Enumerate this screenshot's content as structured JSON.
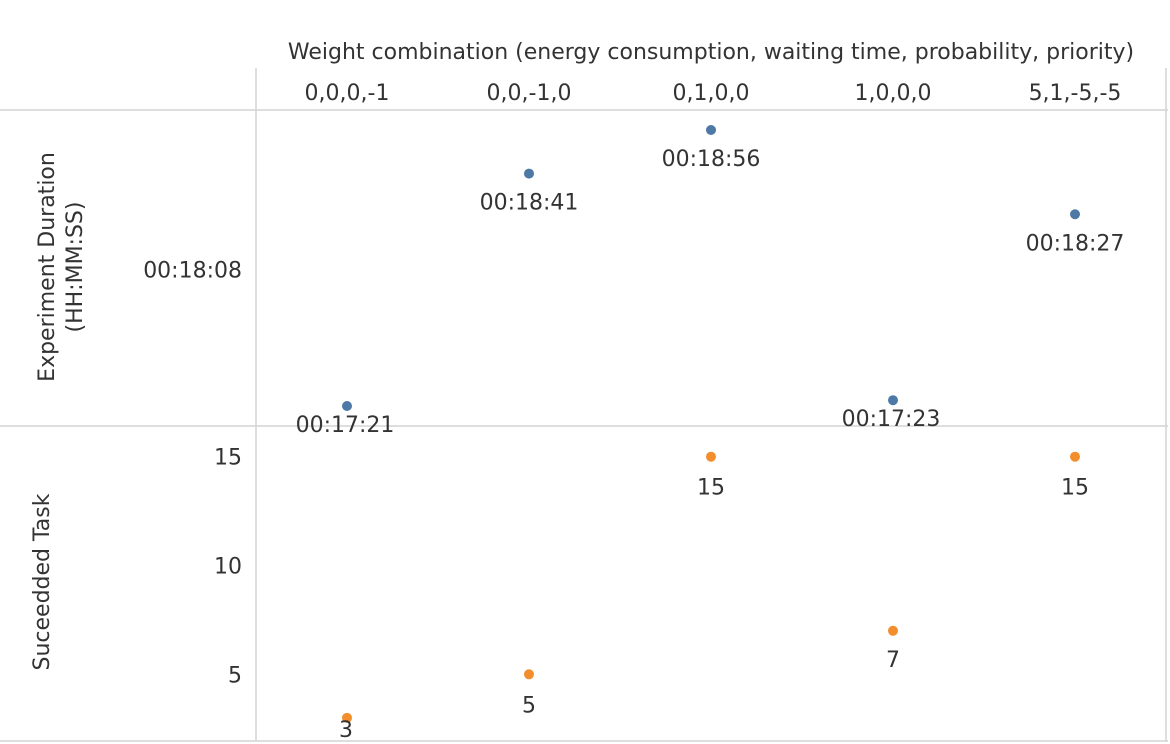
{
  "chart_data": {
    "type": "scatter",
    "title": "Weight combination (energy consumption, waiting time, probability, priority)",
    "categories": [
      "0,0,0,-1",
      "0,0,-1,0",
      "0,1,0,0",
      "1,0,0,0",
      "5,1,-5,-5"
    ],
    "panels": [
      {
        "name": "Experiment Duration",
        "ylabel_lines": [
          "Experiment Duration",
          "(HH:MM:SS)"
        ],
        "y_ticks": [
          "00:18:08"
        ],
        "y_tick_values_s": [
          1088
        ],
        "ylim_s": [
          1041,
          1136
        ],
        "values_s": [
          1041,
          1121,
          1136,
          1043,
          1107
        ],
        "labels": [
          "00:17:21",
          "00:18:41",
          "00:18:56",
          "00:17:23",
          "00:18:27"
        ],
        "color": "#4e79a7"
      },
      {
        "name": "Suceedded Task",
        "ylabel_lines": [
          "Suceedded Task"
        ],
        "y_ticks": [
          "5",
          "10",
          "15"
        ],
        "y_tick_values": [
          5,
          10,
          15
        ],
        "ylim": [
          2.9,
          15.4
        ],
        "values": [
          3,
          5,
          15,
          7,
          15
        ],
        "labels": [
          "3",
          "5",
          "15",
          "7",
          "15"
        ],
        "color": "#f28e2b"
      }
    ]
  }
}
